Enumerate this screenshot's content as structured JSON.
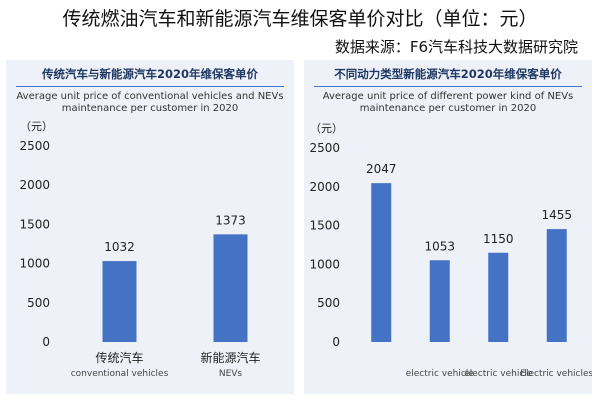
{
  "page": {
    "title": "传统燃油汽车和新能源汽车维保客单价对比（单位：元）",
    "source": "数据来源：F6汽车科技大数据研究院"
  },
  "colors": {
    "bar": "#4472c4",
    "panel_bg": "#eef2f8",
    "title_line": "#4472c4"
  },
  "chart_data": [
    {
      "type": "bar",
      "title": "传统汽车与新能源汽车2020年维保客单价",
      "subtitle": "Average unit price of conventional vehicles and NEVs maintenance per customer in 2020",
      "ylabel": "（元）",
      "ylim": [
        0,
        2500
      ],
      "yticks": [
        0,
        500,
        1000,
        1500,
        2000,
        2500
      ],
      "categories": [
        "传统汽车",
        "新能源汽车"
      ],
      "categories_en": [
        "conventional vehicles",
        "NEVs"
      ],
      "values": [
        1032,
        1373
      ],
      "grid": false,
      "legend": "none"
    },
    {
      "type": "bar",
      "title": "不同动力类型新能源汽车2020年维保客单价",
      "subtitle": "Average unit price of different power kind of NEVs maintenance per customer in 2020",
      "ylabel": "（元）",
      "ylim": [
        0,
        2500
      ],
      "yticks": [
        0,
        500,
        1000,
        1500,
        2000,
        2500
      ],
      "categories": [
        "",
        "",
        "",
        ""
      ],
      "categories_en": [
        "",
        "electric vehicle",
        "electric vehicle",
        "Electric vehicles"
      ],
      "values": [
        2047,
        1053,
        1150,
        1455
      ],
      "grid": false,
      "legend": "none"
    }
  ]
}
